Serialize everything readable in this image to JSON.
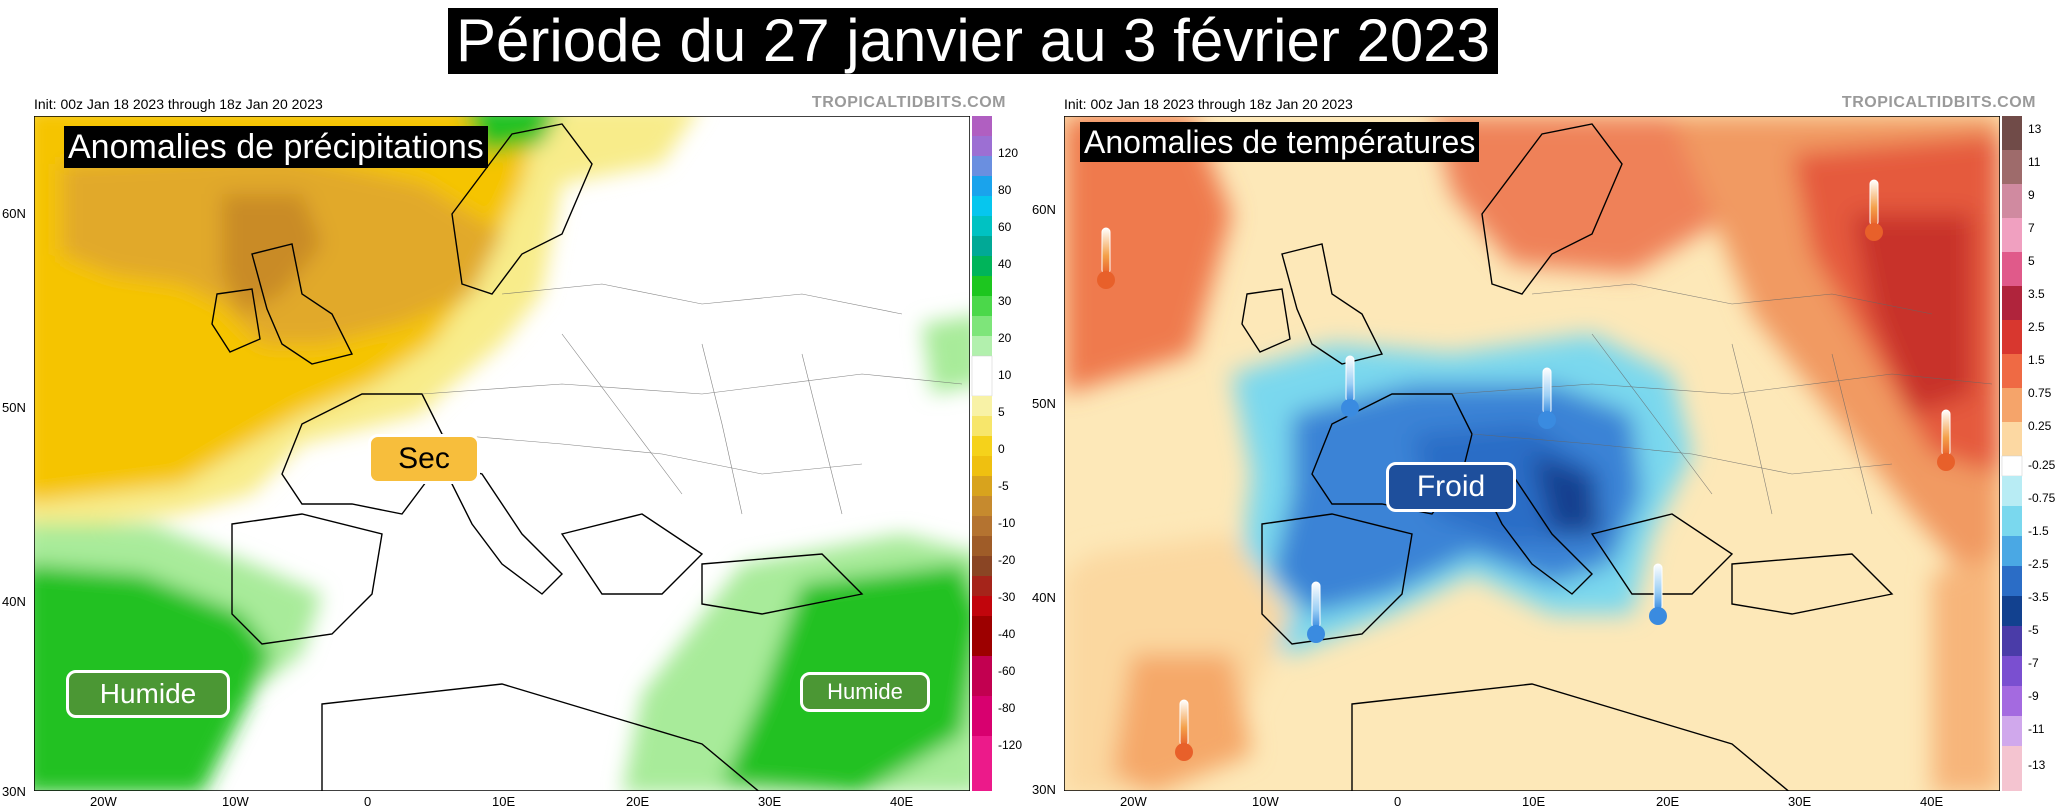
{
  "title": "Période du 27 janvier au 3 février 2023",
  "panels": [
    {
      "init": "Init: 00z Jan 18 2023 through 18z Jan 20 2023",
      "credit": "TROPICALTIDBITS.COM",
      "overlay_title": "Anomalies de précipitations",
      "labels": [
        "Sec",
        "Humide",
        "Humide"
      ],
      "colorbar": [
        "120",
        "80",
        "60",
        "40",
        "30",
        "20",
        "10",
        "5",
        "0",
        "-5",
        "-10",
        "-20",
        "-30",
        "-40",
        "-60",
        "-80",
        "-120"
      ]
    },
    {
      "init": "Init: 00z Jan 18 2023 through 18z Jan 20 2023",
      "credit": "TROPICALTIDBITS.COM",
      "overlay_title": "Anomalies de températures",
      "labels": [
        "Froid"
      ],
      "colorbar": [
        "13",
        "11",
        "9",
        "7",
        "5",
        "3.5",
        "2.5",
        "1.5",
        "0.75",
        "0.25",
        "-0.25",
        "-0.75",
        "-1.5",
        "-2.5",
        "-3.5",
        "-5",
        "-7",
        "-9",
        "-11",
        "-13"
      ]
    }
  ],
  "lat_labels": [
    "60N",
    "50N",
    "40N",
    "30N"
  ],
  "lon_labels": [
    "20W",
    "10W",
    "0",
    "10E",
    "20E",
    "30E",
    "40E"
  ],
  "icons": [
    "thermometer-warm-icon",
    "thermometer-cold-icon"
  ],
  "colors": {
    "dry": "#f5c400",
    "dry_strong": "#d9a11c",
    "wet": "#22c121",
    "cold": "#3a83d6",
    "warm": "#e8603a"
  }
}
